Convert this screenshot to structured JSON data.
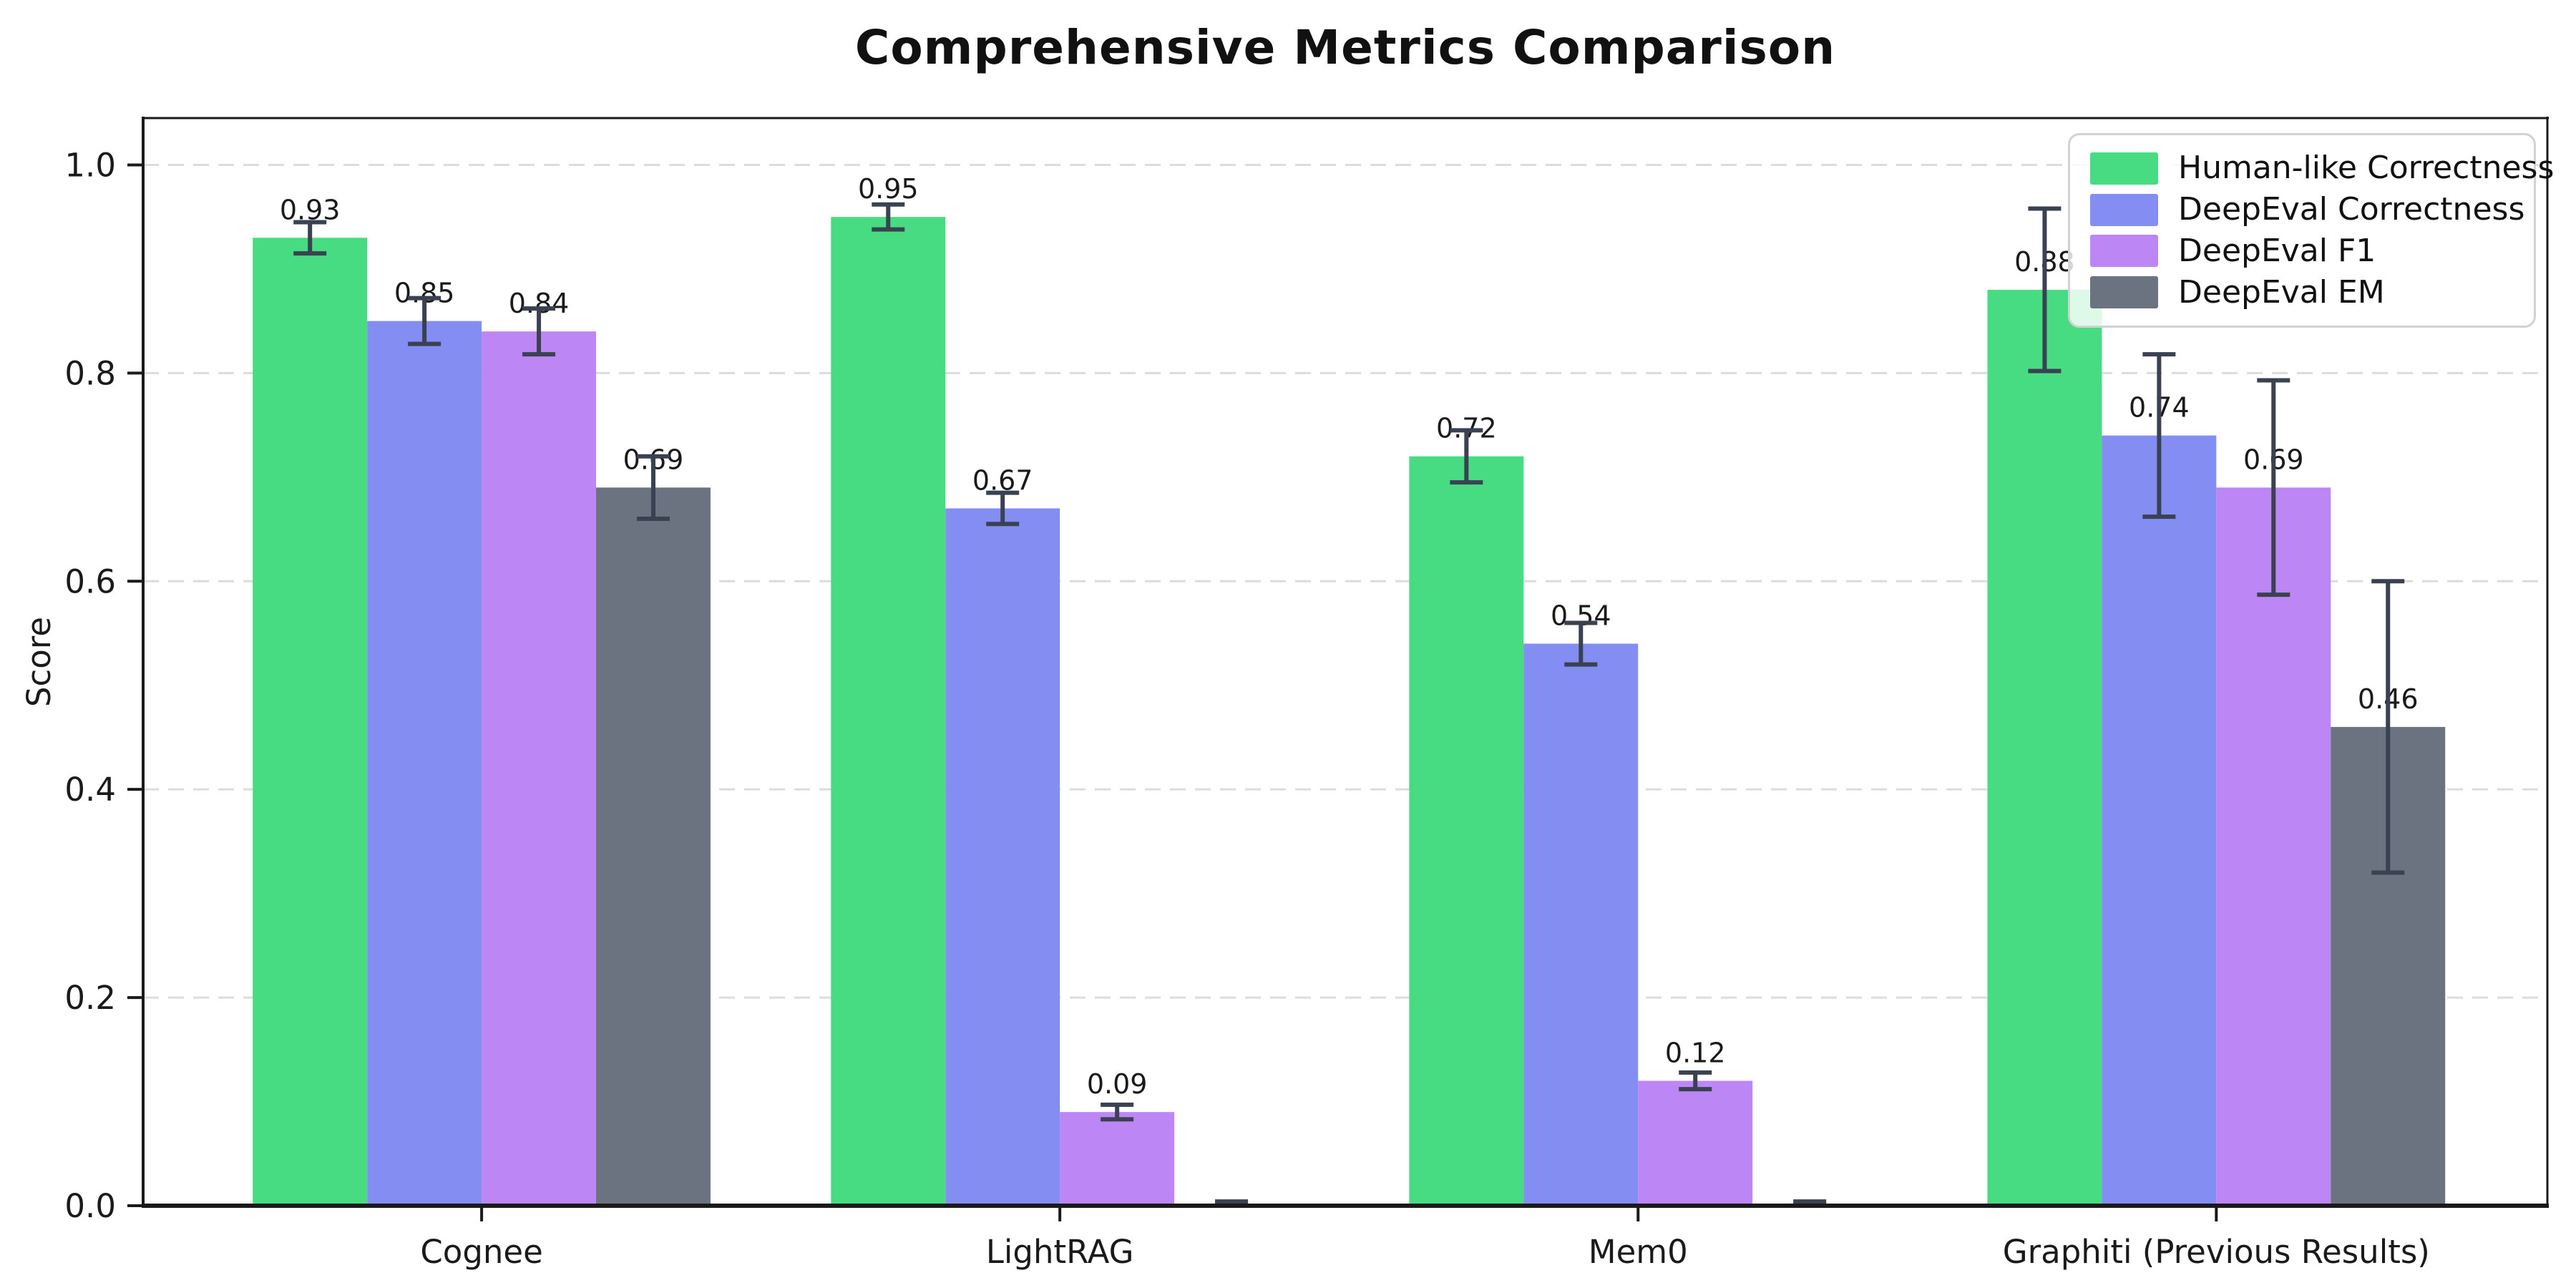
{
  "chart_data": {
    "type": "bar",
    "title": "Comprehensive Metrics Comparison",
    "xlabel": "",
    "ylabel": "Score",
    "categories": [
      "Cognee",
      "LightRAG",
      "Mem0",
      "Graphiti (Previous Results)"
    ],
    "series": [
      {
        "name": "Human-like Correctness",
        "color": "#47dc82",
        "values": [
          0.93,
          0.95,
          0.72,
          0.88
        ],
        "errors": [
          0.015,
          0.012,
          0.025,
          0.078
        ],
        "labels": [
          "0.93",
          "0.95",
          "0.72",
          "0.88"
        ]
      },
      {
        "name": "DeepEval Correctness",
        "color": "#838df2",
        "values": [
          0.85,
          0.67,
          0.54,
          0.74
        ],
        "errors": [
          0.022,
          0.015,
          0.02,
          0.078
        ],
        "labels": [
          "0.85",
          "0.67",
          "0.54",
          "0.74"
        ]
      },
      {
        "name": "DeepEval F1",
        "color": "#bc87f5",
        "values": [
          0.84,
          0.09,
          0.12,
          0.69
        ],
        "errors": [
          0.022,
          0.007,
          0.008,
          0.103
        ],
        "labels": [
          "0.84",
          "0.09",
          "0.12",
          "0.69"
        ]
      },
      {
        "name": "DeepEval EM",
        "color": "#6b7280",
        "values": [
          0.69,
          0.0,
          0.0,
          0.46
        ],
        "errors": [
          0.03,
          0.004,
          0.004,
          0.14
        ],
        "labels": [
          "0.69",
          "",
          "",
          "0.46"
        ]
      }
    ],
    "yticks": [
      0.0,
      0.2,
      0.4,
      0.6,
      0.8,
      1.0
    ],
    "ytick_labels": [
      "0.0",
      "0.2",
      "0.4",
      "0.6",
      "0.8",
      "1.0"
    ],
    "ylim": [
      0,
      1.045
    ],
    "grid": "horizontal-dashed",
    "gridline_color": "#dcdcdc",
    "legend_position": "upper right",
    "error_bar_color": "#3a4150",
    "axis_color": "#1a1a1a"
  }
}
